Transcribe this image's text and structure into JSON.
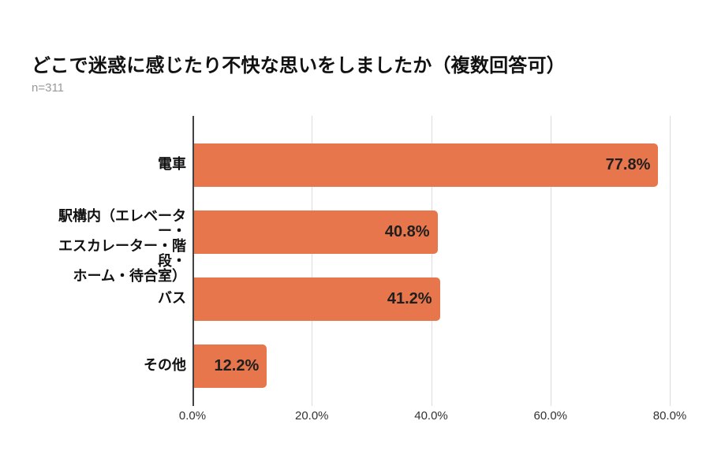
{
  "header": {
    "title": "どこで迷惑に感じたり不快な思いをしましたか（複数回答可）",
    "sample_size": "n=311"
  },
  "chart_data": {
    "type": "bar",
    "orientation": "horizontal",
    "title": "どこで迷惑に感じたり不快な思いをしましたか（複数回答可）",
    "subtitle": "n=311",
    "categories": [
      "電車",
      "駅構内（エレベーター・エスカレーター・階段・ホーム・待合室）",
      "バス",
      "その他"
    ],
    "category_label_lines": [
      [
        "電車"
      ],
      [
        "駅構内（エレベーター・",
        "エスカレーター・階段・",
        "ホーム・待合室）"
      ],
      [
        "バス"
      ],
      [
        "その他"
      ]
    ],
    "values": [
      77.8,
      40.8,
      41.2,
      12.2
    ],
    "value_labels": [
      "77.8%",
      "40.8%",
      "41.2%",
      "12.2%"
    ],
    "xlim": [
      0,
      80
    ],
    "x_ticks": [
      {
        "value": 0,
        "label": "0.0%"
      },
      {
        "value": 20,
        "label": "20.0%"
      },
      {
        "value": 40,
        "label": "40.0%"
      },
      {
        "value": 60,
        "label": "60.0%"
      },
      {
        "value": 80,
        "label": "80.0%"
      }
    ],
    "grid": true,
    "legend": false,
    "xlabel": "",
    "ylabel": "",
    "colors": {
      "bar": "#E7764C",
      "grid": "#DCDCDC",
      "axis": "#424242",
      "value_label": "#1F1F1F",
      "tick_label": "#333333",
      "title": "#111111",
      "subtitle": "#999999"
    }
  }
}
